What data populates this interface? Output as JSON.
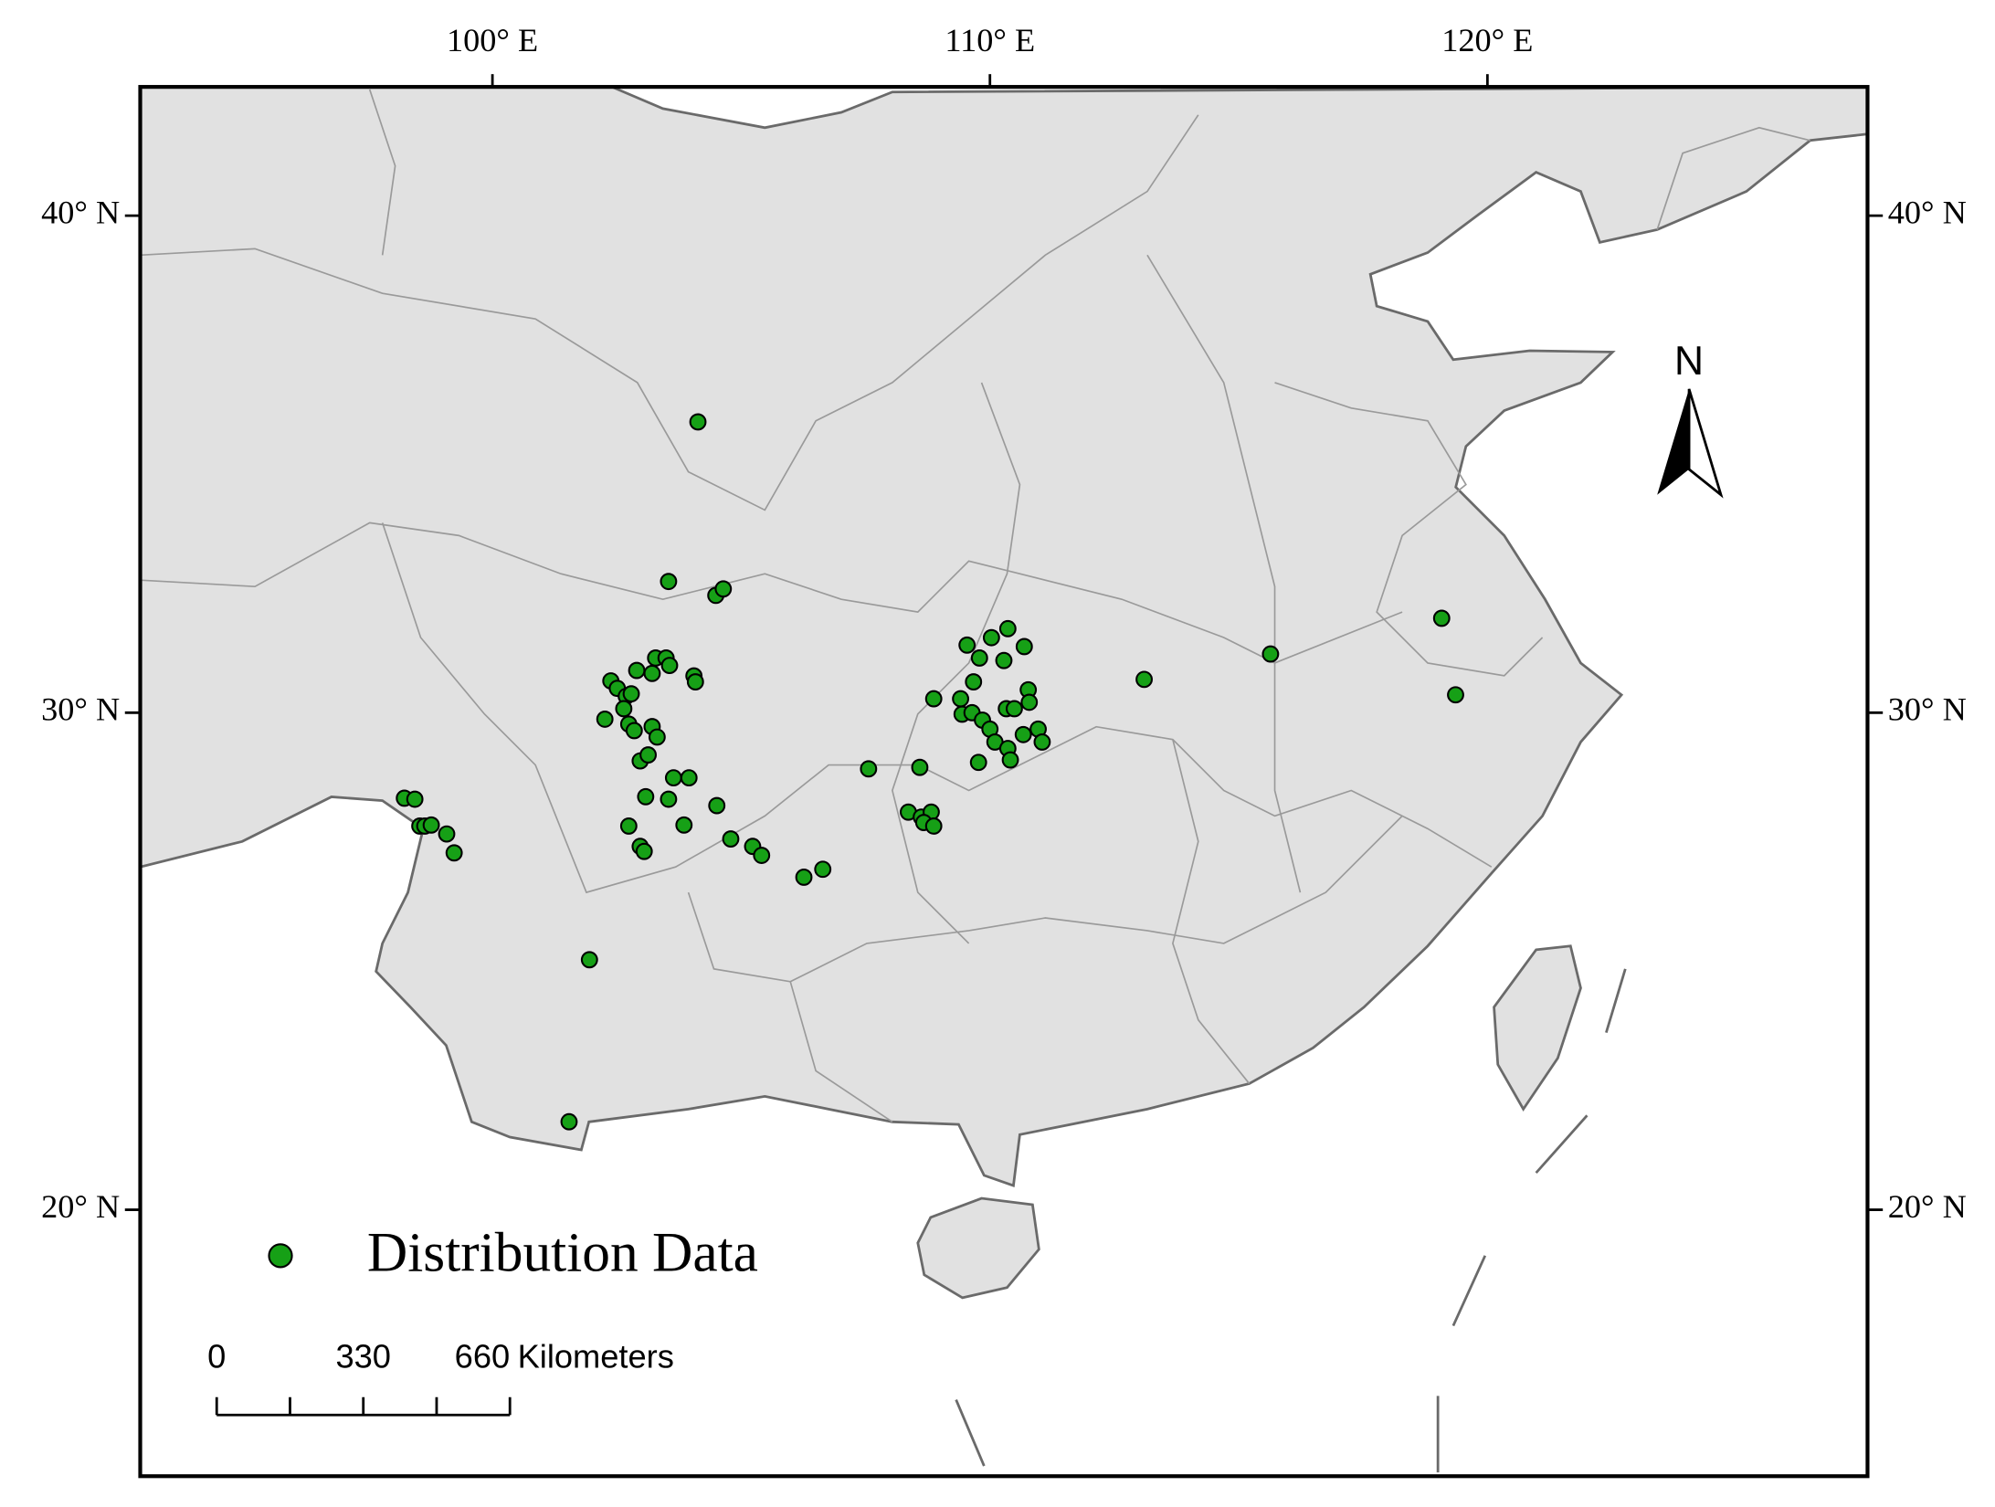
{
  "chart_data": {
    "type": "scatter",
    "series": [
      {
        "name": "Distribution Data",
        "color": "#16a016",
        "x": [
          104.13,
          103.54,
          104.49,
          104.64,
          102.38,
          102.51,
          102.69,
          102.79,
          102.9,
          103.28,
          103.21,
          103.49,
          103.56,
          104.05,
          104.08,
          102.26,
          102.64,
          102.74,
          102.85,
          103.21,
          103.31,
          102.97,
          103.13,
          103.64,
          103.95,
          103.08,
          103.54,
          104.51,
          102.74,
          103.85,
          102.97,
          103.05,
          104.79,
          105.23,
          105.41,
          106.26,
          106.64,
          98.23,
          98.44,
          98.54,
          98.64,
          98.77,
          99.08,
          99.23,
          101.95,
          101.54,
          107.56,
          108.59,
          108.36,
          108.62,
          108.82,
          108.67,
          108.87,
          109.54,
          109.79,
          110.03,
          110.36,
          110.69,
          110.28,
          109.67,
          108.87,
          109.41,
          109.44,
          109.64,
          109.85,
          110.0,
          110.1,
          110.33,
          110.49,
          110.77,
          110.79,
          110.36,
          110.41,
          109.77,
          110.67,
          110.97,
          111.05,
          113.1,
          115.64,
          119.08,
          119.36
        ],
        "y": [
          35.85,
          32.64,
          32.36,
          32.49,
          30.64,
          30.49,
          30.33,
          30.38,
          30.85,
          31.1,
          30.79,
          31.1,
          30.95,
          30.74,
          30.62,
          29.87,
          30.08,
          29.77,
          29.64,
          29.72,
          29.51,
          29.03,
          29.15,
          28.69,
          28.69,
          28.31,
          28.26,
          28.13,
          27.72,
          27.74,
          27.31,
          27.21,
          27.46,
          27.31,
          27.13,
          26.69,
          26.85,
          28.28,
          28.26,
          27.72,
          27.72,
          27.74,
          27.56,
          27.18,
          25.03,
          21.77,
          28.87,
          28.9,
          28.0,
          27.9,
          28.0,
          27.79,
          27.72,
          31.36,
          31.1,
          31.51,
          31.69,
          31.33,
          31.05,
          30.62,
          30.28,
          30.28,
          29.97,
          30.0,
          29.85,
          29.67,
          29.41,
          30.08,
          30.08,
          30.46,
          30.21,
          29.28,
          29.05,
          29.0,
          29.56,
          29.67,
          29.41,
          30.67,
          31.18,
          31.9,
          30.36
        ]
      }
    ],
    "xlim": [
      92.92,
      127.64
    ],
    "ylim": [
      14.64,
      42.59
    ],
    "xticks": [
      {
        "value": 100,
        "label": "100° E"
      },
      {
        "value": 110,
        "label": "110° E"
      },
      {
        "value": 120,
        "label": "120° E"
      }
    ],
    "yticks": [
      {
        "value": 20,
        "label": "20° N"
      },
      {
        "value": 30,
        "label": "30° N"
      },
      {
        "value": 40,
        "label": "40° N"
      }
    ],
    "north_arrow": "N",
    "scale_bar": {
      "ticks": [
        0,
        330,
        660
      ],
      "unit": "Kilometers"
    }
  }
}
